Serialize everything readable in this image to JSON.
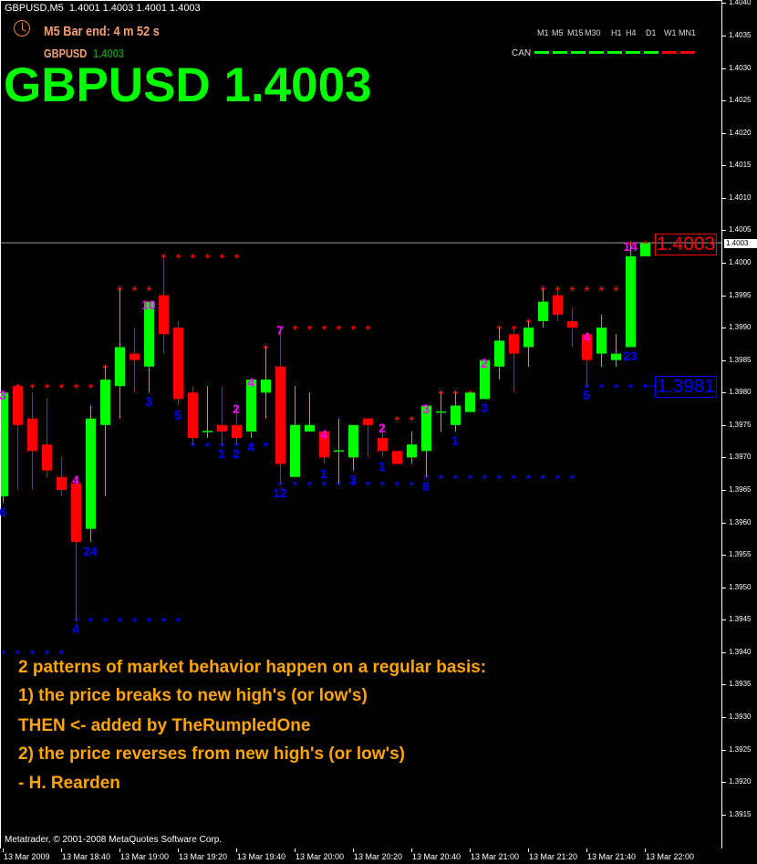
{
  "header": {
    "symbol_tf": "GBPUSD,M5",
    "ohlc": "1.4001 1.4003 1.4001 1.4003"
  },
  "bar_timer": {
    "text": "M5 Bar end: 4 m 52 s",
    "icon": "clock-icon"
  },
  "small_quote": {
    "symbol": "GBPUSD",
    "price": "1.4003"
  },
  "big_quote": "GBPUSD 1.4003",
  "timeframes": {
    "labels": [
      "M1",
      "M5",
      "M15",
      "M30",
      "H1",
      "H4",
      "D1",
      "W1",
      "MN1"
    ],
    "row_label": "CAN",
    "states": [
      "up",
      "up",
      "up",
      "up",
      "up",
      "up",
      "up",
      "down",
      "down"
    ],
    "colors": {
      "up": "#00ff00",
      "down": "#ff0000"
    }
  },
  "quote_text": [
    "2 patterns of market behavior happen on a regular basis:",
    "1) the price breaks to new high's (or low's)",
    "THEN <- added by TheRumpledOne",
    "2) the price reverses from new high's (or low's)",
    "- H. Rearden"
  ],
  "copyright": "Metatrader, © 2001-2008 MetaQuotes Software Corp.",
  "price_boxes": {
    "high": "1.4003",
    "low": "1.3981"
  },
  "chart_data": {
    "type": "candlestick",
    "symbol": "GBPUSD",
    "timeframe": "M5",
    "date": "13 Mar 2009",
    "current_price": "1.4003",
    "colors": {
      "bull": "#00ff00",
      "bear": "#ff0000",
      "resistance": "#ff0000",
      "support": "#0000ff",
      "count_high": "#ff00ff",
      "count_low": "#0000ff"
    },
    "ylim": [
      1.39115,
      1.40405
    ],
    "y_ticks": [
      "1.4040",
      "1.4035",
      "1.4030",
      "1.4025",
      "1.4020",
      "1.4015",
      "1.4010",
      "1.4005",
      "1.4000",
      "1.3995",
      "1.3990",
      "1.3985",
      "1.3980",
      "1.3975",
      "1.3970",
      "1.3965",
      "1.3960",
      "1.3955",
      "1.3950",
      "1.3945",
      "1.3940",
      "1.3935",
      "1.3930",
      "1.3925",
      "1.3920",
      "1.3915"
    ],
    "x_tick_labels": [
      {
        "t": "18:20",
        "label": "13 Mar 2009"
      },
      {
        "t": "18:40",
        "label": "13 Mar 18:40"
      },
      {
        "t": "19:00",
        "label": "13 Mar 19:00"
      },
      {
        "t": "19:20",
        "label": "13 Mar 19:20"
      },
      {
        "t": "19:40",
        "label": "13 Mar 19:40"
      },
      {
        "t": "20:00",
        "label": "13 Mar 20:00"
      },
      {
        "t": "20:20",
        "label": "13 Mar 20:20"
      },
      {
        "t": "20:40",
        "label": "13 Mar 20:40"
      },
      {
        "t": "21:00",
        "label": "13 Mar 21:00"
      },
      {
        "t": "21:20",
        "label": "13 Mar 21:20"
      },
      {
        "t": "21:40",
        "label": "13 Mar 21:40"
      },
      {
        "t": "22:00",
        "label": "13 Mar 22:00"
      }
    ],
    "candles": [
      {
        "t": "18:20",
        "o": 1.3964,
        "h": 1.398,
        "l": 1.3963,
        "c": 1.398
      },
      {
        "t": "18:25",
        "o": 1.3981,
        "h": 1.3981,
        "l": 1.3965,
        "c": 1.3975
      },
      {
        "t": "18:30",
        "o": 1.3976,
        "h": 1.398,
        "l": 1.3965,
        "c": 1.3971
      },
      {
        "t": "18:35",
        "o": 1.3972,
        "h": 1.3979,
        "l": 1.3967,
        "c": 1.3968
      },
      {
        "t": "18:40",
        "o": 1.3967,
        "h": 1.397,
        "l": 1.3964,
        "c": 1.3965
      },
      {
        "t": "18:45",
        "o": 1.3966,
        "h": 1.3967,
        "l": 1.3945,
        "c": 1.3957
      },
      {
        "t": "18:50",
        "o": 1.3959,
        "h": 1.3978,
        "l": 1.3957,
        "c": 1.3976
      },
      {
        "t": "18:55",
        "o": 1.3975,
        "h": 1.3984,
        "l": 1.3964,
        "c": 1.3982
      },
      {
        "t": "19:00",
        "o": 1.3981,
        "h": 1.3996,
        "l": 1.3976,
        "c": 1.3987
      },
      {
        "t": "19:05",
        "o": 1.3986,
        "h": 1.399,
        "l": 1.398,
        "c": 1.3985
      },
      {
        "t": "19:10",
        "o": 1.3984,
        "h": 1.3994,
        "l": 1.398,
        "c": 1.3994
      },
      {
        "t": "19:15",
        "o": 1.3995,
        "h": 1.4001,
        "l": 1.3986,
        "c": 1.3989
      },
      {
        "t": "19:20",
        "o": 1.399,
        "h": 1.3991,
        "l": 1.3978,
        "c": 1.3979
      },
      {
        "t": "19:25",
        "o": 1.398,
        "h": 1.3981,
        "l": 1.3972,
        "c": 1.3973
      },
      {
        "t": "19:30",
        "o": 1.3974,
        "h": 1.3981,
        "l": 1.3973,
        "c": 1.3974
      },
      {
        "t": "19:35",
        "o": 1.3975,
        "h": 1.3981,
        "l": 1.3972,
        "c": 1.3974
      },
      {
        "t": "19:40",
        "o": 1.3975,
        "h": 1.3978,
        "l": 1.3972,
        "c": 1.3973
      },
      {
        "t": "19:45",
        "o": 1.3974,
        "h": 1.3982,
        "l": 1.3973,
        "c": 1.3982
      },
      {
        "t": "19:50",
        "o": 1.398,
        "h": 1.3987,
        "l": 1.3976,
        "c": 1.3982
      },
      {
        "t": "19:55",
        "o": 1.3984,
        "h": 1.399,
        "l": 1.3966,
        "c": 1.3969
      },
      {
        "t": "20:00",
        "o": 1.3967,
        "h": 1.3981,
        "l": 1.3967,
        "c": 1.3975
      },
      {
        "t": "20:05",
        "o": 1.3974,
        "h": 1.398,
        "l": 1.3974,
        "c": 1.3975
      },
      {
        "t": "20:10",
        "o": 1.3974,
        "h": 1.3974,
        "l": 1.3969,
        "c": 1.397
      },
      {
        "t": "20:15",
        "o": 1.3971,
        "h": 1.3976,
        "l": 1.3966,
        "c": 1.3971
      },
      {
        "t": "20:20",
        "o": 1.397,
        "h": 1.3975,
        "l": 1.3968,
        "c": 1.3975
      },
      {
        "t": "20:25",
        "o": 1.3976,
        "h": 1.3976,
        "l": 1.397,
        "c": 1.3975
      },
      {
        "t": "20:30",
        "o": 1.3973,
        "h": 1.3975,
        "l": 1.397,
        "c": 1.3971
      },
      {
        "t": "20:35",
        "o": 1.3971,
        "h": 1.3971,
        "l": 1.3969,
        "c": 1.3969
      },
      {
        "t": "20:40",
        "o": 1.397,
        "h": 1.3974,
        "l": 1.3969,
        "c": 1.3972
      },
      {
        "t": "20:45",
        "o": 1.3971,
        "h": 1.3978,
        "l": 1.3967,
        "c": 1.3978
      },
      {
        "t": "20:50",
        "o": 1.3977,
        "h": 1.398,
        "l": 1.3974,
        "c": 1.3977
      },
      {
        "t": "20:55",
        "o": 1.3975,
        "h": 1.398,
        "l": 1.3974,
        "c": 1.3978
      },
      {
        "t": "21:00",
        "o": 1.3977,
        "h": 1.398,
        "l": 1.3977,
        "c": 1.398
      },
      {
        "t": "21:05",
        "o": 1.3979,
        "h": 1.3985,
        "l": 1.3979,
        "c": 1.3985
      },
      {
        "t": "21:10",
        "o": 1.3984,
        "h": 1.399,
        "l": 1.3982,
        "c": 1.3988
      },
      {
        "t": "21:15",
        "o": 1.3989,
        "h": 1.399,
        "l": 1.398,
        "c": 1.3986
      },
      {
        "t": "21:20",
        "o": 1.3987,
        "h": 1.3991,
        "l": 1.3984,
        "c": 1.399
      },
      {
        "t": "21:25",
        "o": 1.3991,
        "h": 1.3996,
        "l": 1.399,
        "c": 1.3994
      },
      {
        "t": "21:30",
        "o": 1.3995,
        "h": 1.3996,
        "l": 1.3991,
        "c": 1.3992
      },
      {
        "t": "21:35",
        "o": 1.3991,
        "h": 1.3993,
        "l": 1.3987,
        "c": 1.399
      },
      {
        "t": "21:40",
        "o": 1.3989,
        "h": 1.3989,
        "l": 1.3981,
        "c": 1.3985
      },
      {
        "t": "21:45",
        "o": 1.3986,
        "h": 1.3992,
        "l": 1.3984,
        "c": 1.399
      },
      {
        "t": "21:50",
        "o": 1.3985,
        "h": 1.3989,
        "l": 1.3984,
        "c": 1.3986
      },
      {
        "t": "21:55",
        "o": 1.3987,
        "h": 1.4003,
        "l": 1.3987,
        "c": 1.4001
      },
      {
        "t": "22:00",
        "o": 1.4001,
        "h": 1.4003,
        "l": 1.4001,
        "c": 1.4003
      }
    ],
    "levels": [
      {
        "kind": "resistance",
        "price": 1.3981,
        "from": "18:25",
        "to": "18:50"
      },
      {
        "kind": "resistance",
        "price": 1.3984,
        "from": "18:55",
        "to": "18:55"
      },
      {
        "kind": "resistance",
        "price": 1.3996,
        "from": "19:00",
        "to": "19:10"
      },
      {
        "kind": "resistance",
        "price": 1.4001,
        "from": "19:15",
        "to": "19:40"
      },
      {
        "kind": "resistance",
        "price": 1.3987,
        "from": "19:50",
        "to": "19:50"
      },
      {
        "kind": "resistance",
        "price": 1.399,
        "from": "20:00",
        "to": "20:25"
      },
      {
        "kind": "resistance",
        "price": 1.3976,
        "from": "20:35",
        "to": "20:40"
      },
      {
        "kind": "resistance",
        "price": 1.398,
        "from": "20:50",
        "to": "21:00"
      },
      {
        "kind": "resistance",
        "price": 1.399,
        "from": "21:10",
        "to": "21:15"
      },
      {
        "kind": "resistance",
        "price": 1.3991,
        "from": "21:20",
        "to": "21:20"
      },
      {
        "kind": "resistance",
        "price": 1.3996,
        "from": "21:25",
        "to": "21:50"
      },
      {
        "kind": "resistance",
        "price": 1.4003,
        "from": "21:55",
        "to": "22:00"
      },
      {
        "kind": "support",
        "price": 1.394,
        "from": "18:20",
        "to": "18:40"
      },
      {
        "kind": "support",
        "price": 1.3945,
        "from": "18:45",
        "to": "19:20"
      },
      {
        "kind": "support",
        "price": 1.3972,
        "from": "19:25",
        "to": "19:50"
      },
      {
        "kind": "support",
        "price": 1.3966,
        "from": "19:55",
        "to": "20:40"
      },
      {
        "kind": "support",
        "price": 1.3967,
        "from": "20:45",
        "to": "21:35"
      },
      {
        "kind": "support",
        "price": 1.3981,
        "from": "21:40",
        "to": "22:00"
      }
    ],
    "counts": [
      {
        "t": "18:20",
        "pos": "high",
        "text": "3"
      },
      {
        "t": "18:20",
        "pos": "low",
        "text": "6"
      },
      {
        "t": "18:45",
        "pos": "high",
        "text": "4"
      },
      {
        "t": "18:45",
        "pos": "low",
        "text": "4"
      },
      {
        "t": "18:50",
        "pos": "low",
        "text": "24"
      },
      {
        "t": "19:10",
        "pos": "high",
        "text": "10"
      },
      {
        "t": "19:10",
        "pos": "low",
        "text": "3"
      },
      {
        "t": "19:20",
        "pos": "low",
        "text": "5"
      },
      {
        "t": "19:35",
        "pos": "low",
        "text": "1"
      },
      {
        "t": "19:40",
        "pos": "high",
        "text": "2"
      },
      {
        "t": "19:40",
        "pos": "low",
        "text": "2"
      },
      {
        "t": "19:45",
        "pos": "high",
        "text": "4"
      },
      {
        "t": "19:45",
        "pos": "low",
        "text": "4"
      },
      {
        "t": "19:55",
        "pos": "high",
        "text": "7"
      },
      {
        "t": "19:55",
        "pos": "low",
        "text": "12"
      },
      {
        "t": "20:10",
        "pos": "high",
        "text": "4"
      },
      {
        "t": "20:10",
        "pos": "low",
        "text": "1"
      },
      {
        "t": "20:20",
        "pos": "low",
        "text": "3"
      },
      {
        "t": "20:30",
        "pos": "high",
        "text": "2"
      },
      {
        "t": "20:30",
        "pos": "low",
        "text": "1"
      },
      {
        "t": "20:45",
        "pos": "high",
        "text": "3"
      },
      {
        "t": "20:45",
        "pos": "low",
        "text": "8"
      },
      {
        "t": "20:55",
        "pos": "low",
        "text": "1"
      },
      {
        "t": "21:05",
        "pos": "high",
        "text": "2"
      },
      {
        "t": "21:05",
        "pos": "low",
        "text": "3"
      },
      {
        "t": "21:40",
        "pos": "high",
        "text": "4"
      },
      {
        "t": "21:40",
        "pos": "low",
        "text": "5"
      },
      {
        "t": "21:55",
        "pos": "high",
        "text": "14"
      },
      {
        "t": "21:55",
        "pos": "low",
        "text": "23"
      }
    ]
  }
}
